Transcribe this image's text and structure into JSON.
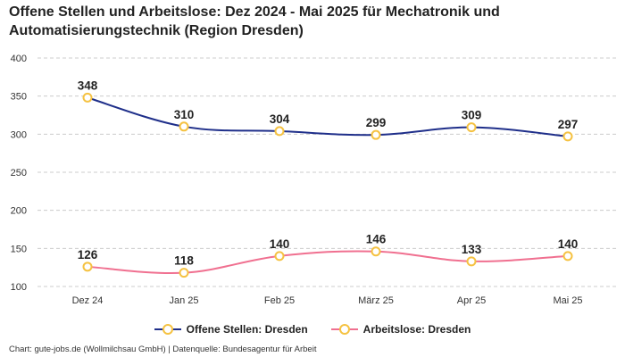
{
  "title": "Offene Stellen und Arbeitslose: Dez 2024 - Mai 2025 für Mechatronik und Automatisierungstechnik (Region Dresden)",
  "footer": "Chart: gute-jobs.de (Wollmilchsau GmbH) | Datenquelle: Bundesagentur für Arbeit",
  "colors": {
    "offene": "#1f2f8a",
    "arbeitslose": "#f07090",
    "marker_border": "#f5c242",
    "marker_fill": "#ffffff"
  },
  "chart_data": {
    "type": "line",
    "categories": [
      "Dez 24",
      "Jan 25",
      "Feb 25",
      "März 25",
      "Apr 25",
      "Mai 25"
    ],
    "y_ticks": [
      "100",
      "150",
      "200",
      "250",
      "300",
      "350",
      "400"
    ],
    "ylim": [
      100,
      400
    ],
    "grid": true,
    "legend_position": "bottom",
    "series": [
      {
        "name": "Offene Stellen: Dresden",
        "values": [
          348,
          310,
          304,
          299,
          309,
          297
        ]
      },
      {
        "name": "Arbeitslose: Dresden",
        "values": [
          126,
          118,
          140,
          146,
          133,
          140
        ]
      }
    ]
  }
}
